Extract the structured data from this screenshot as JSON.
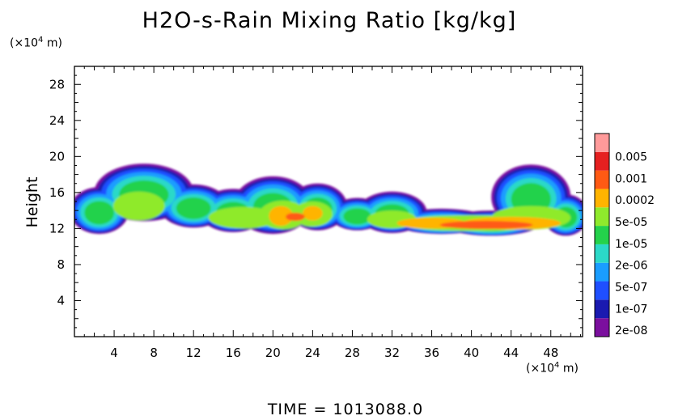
{
  "chart_data": {
    "type": "heatmap",
    "title": "H2O-s-Rain Mixing Ratio [kg/kg]",
    "ylabel": "Height",
    "x_unit_prefix": "(×10",
    "x_unit_exp": "4",
    "x_unit_suffix": " m)",
    "y_unit_prefix": "(×10",
    "y_unit_exp": "4",
    "y_unit_suffix": " m)",
    "xlim": [
      0,
      51.2
    ],
    "ylim": [
      0,
      30
    ],
    "x_ticks": [
      4,
      8,
      12,
      16,
      20,
      24,
      28,
      32,
      36,
      40,
      44,
      48
    ],
    "y_ticks": [
      4,
      8,
      12,
      16,
      20,
      24,
      28
    ],
    "colorbar": {
      "labels": [
        "0.005",
        "0.001",
        "0.0002",
        "5e-05",
        "1e-05",
        "2e-06",
        "5e-07",
        "1e-07",
        "2e-08"
      ],
      "colors": [
        "#7b0f9e",
        "#1a1ab0",
        "#1f4fff",
        "#1a9dff",
        "#2bd9c8",
        "#24d24b",
        "#8fea2c",
        "#ffb400",
        "#ff5a14",
        "#e52020",
        "#ff9a9a"
      ]
    },
    "features": [
      {
        "level": 2,
        "x_range": [
          0,
          51
        ],
        "y_range": [
          11,
          19.5
        ],
        "note": "cloud band"
      },
      {
        "level": 8,
        "x": [
          20.5,
          24
        ],
        "y": 13.3
      },
      {
        "level": 8,
        "x": [
          33,
          50
        ],
        "y": 12.4
      }
    ],
    "footer": "TIME = 1013088.0"
  }
}
